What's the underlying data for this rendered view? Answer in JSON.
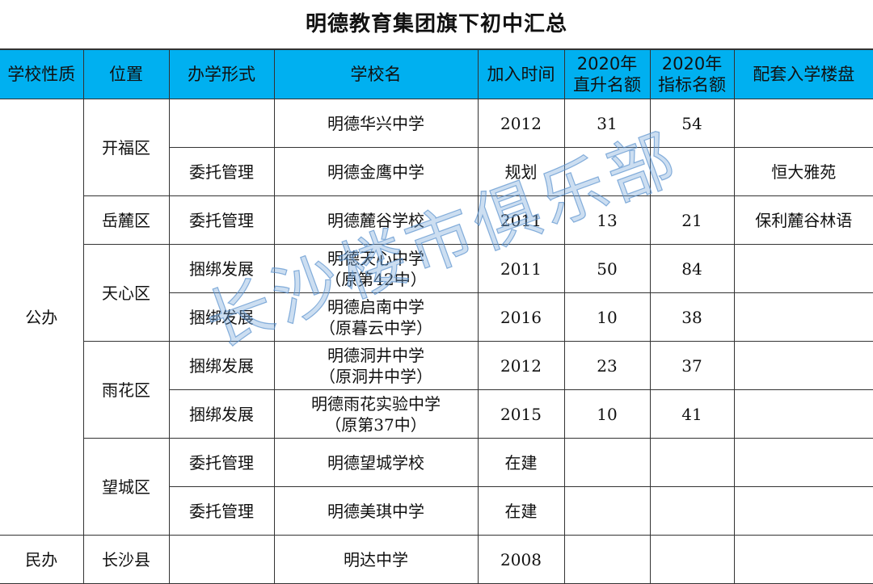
{
  "title": "明德教育集团旗下初中汇总",
  "header_color": "#00b0f0",
  "headers": [
    "学校性质",
    "位置",
    "办学形式",
    "学校名",
    "加入时间",
    "2020年\n直升名额",
    "2020年\n指标名额",
    "配套入学楼盘"
  ],
  "groups": [
    {
      "type": "公办",
      "locations": [
        {
          "name": "开福区",
          "schools": [
            {
              "mode": "",
              "name": "明德华兴中学",
              "year": "2012",
              "direct": "31",
              "quota": "54",
              "estate": ""
            },
            {
              "mode": "委托管理",
              "name": "明德金鹰中学",
              "year": "规划",
              "direct": "",
              "quota": "",
              "estate": "恒大雅苑"
            }
          ]
        },
        {
          "name": "岳麓区",
          "schools": [
            {
              "mode": "委托管理",
              "name": "明德麓谷学校",
              "year": "2011",
              "direct": "13",
              "quota": "21",
              "estate": "保利麓谷林语"
            }
          ]
        },
        {
          "name": "天心区",
          "schools": [
            {
              "mode": "捆绑发展",
              "name": "明德天心中学\n（原第42中）",
              "year": "2011",
              "direct": "50",
              "quota": "84",
              "estate": ""
            },
            {
              "mode": "捆绑发展",
              "name": "明德启南中学\n（原暮云中学）",
              "year": "2016",
              "direct": "10",
              "quota": "38",
              "estate": ""
            }
          ]
        },
        {
          "name": "雨花区",
          "schools": [
            {
              "mode": "捆绑发展",
              "name": "明德洞井中学\n（原洞井中学）",
              "year": "2012",
              "direct": "23",
              "quota": "37",
              "estate": ""
            },
            {
              "mode": "捆绑发展",
              "name": "明德雨花实验中学\n（原第37中）",
              "year": "2015",
              "direct": "10",
              "quota": "41",
              "estate": ""
            }
          ]
        },
        {
          "name": "望城区",
          "schools": [
            {
              "mode": "委托管理",
              "name": "明德望城学校",
              "year": "在建",
              "direct": "",
              "quota": "",
              "estate": ""
            },
            {
              "mode": "委托管理",
              "name": "明德美琪中学",
              "year": "在建",
              "direct": "",
              "quota": "",
              "estate": ""
            }
          ]
        }
      ]
    },
    {
      "type": "民办",
      "locations": [
        {
          "name": "长沙县",
          "schools": [
            {
              "mode": "",
              "name": "明达中学",
              "year": "2008",
              "direct": "",
              "quota": "",
              "estate": ""
            }
          ]
        }
      ]
    }
  ],
  "watermark": "长沙楼市俱乐部"
}
